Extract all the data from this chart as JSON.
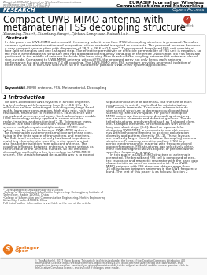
{
  "header_left_line1": "Zhu et al. EURASIP Journal on Wireless Communications",
  "header_left_line2": "and Networking (2017) 2017:113",
  "header_left_line3": "DOI 10.1186/s13638-017-0894-3",
  "header_right_line1": "EURASIP Journal on Wireless",
  "header_right_line2": "Communications and Networking",
  "research_label": "RESEARCH",
  "open_access_label": "Open Access",
  "research_bg": "#1b4f72",
  "title_line1": "Compact UWB-MIMO antenna with",
  "title_line2": "metamaterial FSS decoupling structure",
  "authors": "Xiaoming Zhu¹²*, Xiaodong Yang²³, Qichao Song¹ and Baisen Lui¹",
  "abstract_title": "Abstract",
  "abstract_lines": [
    "In this paper, an UWB-MIMO antenna with frequency selective surface (FSS) decoupling structure is proposed. To realize",
    "antenna system miniaturization and integration, silicon material is applied as substrate. The proposed antenna becomes",
    "a very compact construction with dimension of 38.2 × 26.6 × 0.4 mm³. The proposed broadband FSS unit consists of",
    "four split rectangles and one I-shaped strip. The effective permittivity or effective permeability of FSS unit is negative, so",
    "the FSS is a metamaterial structure and has a broadband frequency band-gap in the entire UWB range. Six FSS units are",
    "positioned in the middle of antenna backside, like band-stop filter to reduce the coupling between the antennas placed",
    "side-by-side. Compared to UWB-MIMO antenna without FSS, the proposed array not only keeps each antenna",
    "performance but also decreases 7.2 dB coupling. The UWB-MIMO with FSS structure provides an overall isolation of",
    "more than 16 dB in the UWB spectrum, so it is suitable for portable UWB-MIMO system applications."
  ],
  "keywords_label": "Keywords:",
  "keywords_text": "UWB-MIMO antenna, FSS, Metamaterial, Decoupling",
  "intro_title": "1 Introduction",
  "intro_left_lines": [
    "The ultra-wideband (UWB) system is a radio engineer-",
    "ing technology with frequency from 3.1-10.6 GHz [1],",
    "which has several advantages including very large band-",
    "width, low power consumption, high data rate, high time",
    "resolution, resistance to interference, co-existence with",
    "narrowband antenna, and so on. Such advantages enable",
    "UWB technology widely applied in communication,",
    "radar, imaging, and positioning [2-3]. To improve trans-",
    "mission rate and communication reliability of UWB",
    "system, multiple-input-multiple-output (MIMO) tech-",
    "nology can be joined to become UWB-MIMO system.",
    "The combination system needs multiple antennas coex-",
    "isting in the finite space of transmitters and receivers.",
    "The individual antenna not only has broad impedance",
    "matching characteristic over the entire spectrum but",
    "also has better isolation from adjacent antenna. The",
    "coupling influence between antennas is more serious as",
    "the increase of the antenna number, so the effective",
    "decoupling method is a key technology for UWB-MIMO",
    "system. The straightforward decoupling way is to extend"
  ],
  "intro_right_lines": [
    "separation distance of antennas, but the size of each",
    "component is strictly controlled for miniaturization",
    "UWB mobile terminals. The correct scheme is to de-",
    "sign special structure to decrease coupling without",
    "sacrificing transceiver space. For planar monopole",
    "MIMO antennas, the common decoupling structures",
    "are parasitic elements and defected grounds. The de-",
    "tailed structures are diversified such as T-shaped elem-",
    "ent, Y-shaped elements, or combination with several",
    "long and short strips [6-8]. Another approach for",
    "designing UWB-MIMO antennas is to use slot anten-",
    "nas with orthogonal feeding to achieve polarization",
    "diversity and pattern diversity [9-11]. These layouts",
    "are relatively larger than the above decoupling antenna",
    "structures. Frequency selective surface (FSS) is a",
    "period electromagnetic material with frequency band",
    "gap performance. FSS structures can selectively deter-",
    "mine electromagnetic waves to pass or prevent within",
    "specified frequency ranges.",
    "    In this paper, a UWB-MIMO structure of antenna is",
    "presented. The broadband FSS cell is composed of elec-",
    "tric resonator and magnetic resonator with the band gap",
    "characteristic as same as metamaterial. This UWB-",
    "MIMO antenna with FSS structure obtains more than",
    "16 dB isolation between antennas in the UWB frequency",
    "band. The rest of this paper is as follows: Section 2"
  ],
  "footnote_lines": [
    "* Correspondence: zhuxiaoming79@163.com",
    "¹College of Electrical and Information Engineering, Heilongjiang Institute of",
    "Technology, Harbin 150050, China",
    "²College of Information and Communication Engineering, Harbin Engineering",
    "University, Harbin 150001, China",
    "Full list of author information is available at the end of the article"
  ],
  "footer_lines": [
    "© The Author(s). 2017 Open Access This article is distributed under the terms of the Creative Commons Attribution 4.0",
    "International License (http://creativecommons.org/licenses/by/4.0/), which permits unrestricted use, distribution, and",
    "reproduction in any medium, provided you give appropriate credit to the original author(s) and the source, provide a link to",
    "the Creative Commons license, and indicate if changes were made."
  ],
  "springer_open_color": "#e8751a",
  "bg_color": "#ffffff",
  "abstract_border_color": "#aaaaaa",
  "crossmark_color": "#c0392b"
}
